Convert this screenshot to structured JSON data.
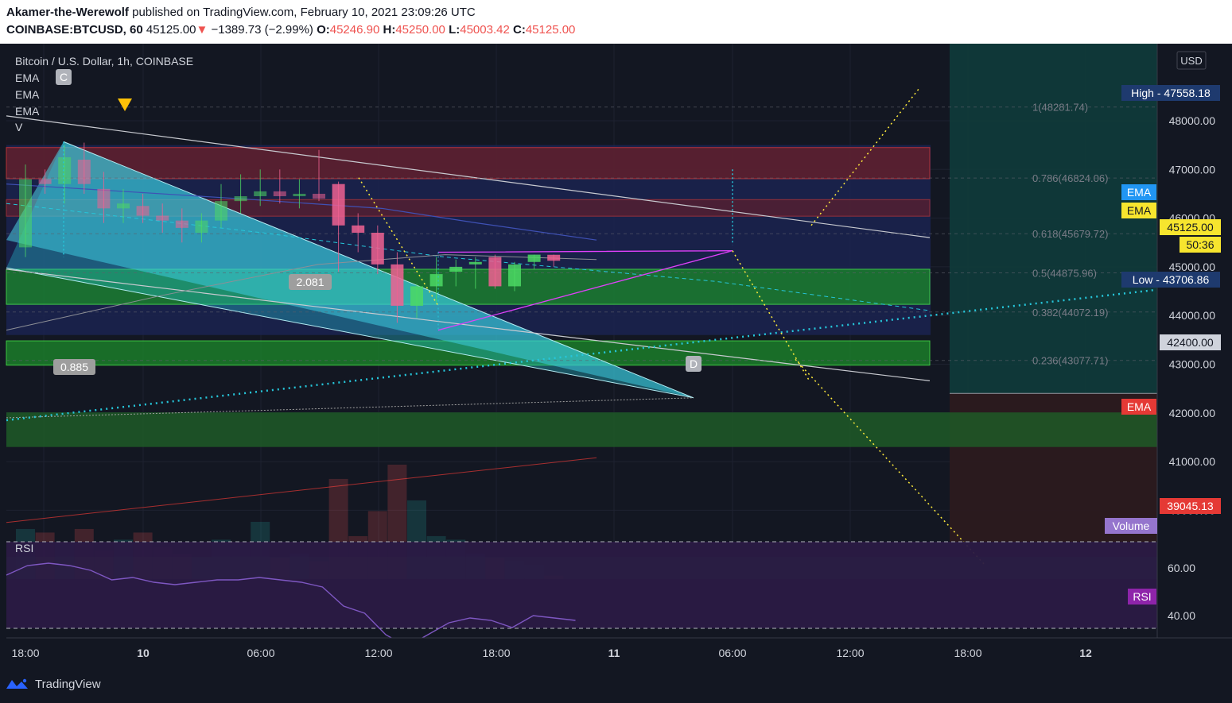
{
  "header": {
    "author": "Akamer-the-Werewolf",
    "published_text": "published on TradingView.com, February 10, 2021 23:09:26 UTC",
    "symbol": "COINBASE:BTCUSD, 60",
    "last": "45125.00",
    "change_arrow": "▼",
    "change": "−1389.73 (−2.99%)",
    "open_label": "O:",
    "open": "45246.90",
    "high_label": "H:",
    "high": "45250.00",
    "low_label": "L:",
    "low": "45003.42",
    "close_label": "C:",
    "close": "45125.00"
  },
  "legend": {
    "title": "Bitcoin / U.S. Dollar, 1h, COINBASE",
    "ema1": "EMA",
    "ema2": "EMA",
    "ema3": "EMA",
    "vol": "V"
  },
  "footer": {
    "brand": "TradingView"
  },
  "colors": {
    "background": "#131722",
    "up": "#26a69a",
    "down": "#ef5350",
    "bull_candle": "#4cd964",
    "bear_candle": "#f06292",
    "fib_text": "#787b86",
    "rsi_band": "#2a1a45",
    "yellow": "#ffeb3b"
  },
  "chart_data": {
    "type": "candlestick",
    "price_axis": {
      "currency": "USD",
      "ylim": [
        38700,
        48600
      ],
      "ticks": [
        "48000.00",
        "47000.00",
        "46000.00",
        "45000.00",
        "44000.00",
        "43000.00",
        "42000.00",
        "41000.00",
        "40000.00"
      ]
    },
    "time_axis": {
      "labels": [
        "18:00",
        "10",
        "06:00",
        "12:00",
        "18:00",
        "11",
        "06:00",
        "12:00",
        "18:00",
        "12"
      ]
    },
    "price_labels": [
      {
        "label": "High",
        "value": "47558.18",
        "color": "#1e3a6e"
      },
      {
        "label": "EMA",
        "value": "",
        "color": "#2196f3"
      },
      {
        "label": "EMA",
        "value": "",
        "color": "#f7e52e"
      },
      {
        "label": "",
        "value": "45125.00",
        "color": "#f7e52e"
      },
      {
        "label": "",
        "value": "50:36",
        "color": "#f7e52e"
      },
      {
        "label": "Low",
        "value": "43706.86",
        "color": "#1e3a6e"
      },
      {
        "label": "",
        "value": "42400.00",
        "color": "#cfd3dc"
      },
      {
        "label": "EMA",
        "value": "",
        "color": "#e53935"
      },
      {
        "label": "",
        "value": "39045.13",
        "color": "#e53935"
      },
      {
        "label": "Volume",
        "value": "",
        "color": "#9575cd"
      }
    ],
    "fib_levels": [
      {
        "ratio": "1",
        "text": "1(48281.74)",
        "price": 48281.74
      },
      {
        "ratio": "0.786",
        "text": "0.786(46824.06)",
        "price": 46824.06
      },
      {
        "ratio": "0.618",
        "text": "0.618(45679.72)",
        "price": 45679.72
      },
      {
        "ratio": "0.5",
        "text": "0.5(44875.96)",
        "price": 44875.96
      },
      {
        "ratio": "0.382",
        "text": "0.382(44072.19)",
        "price": 44072.19
      },
      {
        "ratio": "0.236",
        "text": "0.236(43077.71)",
        "price": 43077.71
      }
    ],
    "pattern_labels": [
      "C",
      "D",
      "2.081",
      "0.885"
    ],
    "candles": [
      {
        "o": 45400,
        "h": 47100,
        "l": 45200,
        "c": 46800
      },
      {
        "o": 46800,
        "h": 47000,
        "l": 46500,
        "c": 46700
      },
      {
        "o": 46700,
        "h": 47500,
        "l": 46300,
        "c": 47250
      },
      {
        "o": 47200,
        "h": 47550,
        "l": 46500,
        "c": 46700
      },
      {
        "o": 46600,
        "h": 46950,
        "l": 45900,
        "c": 46200
      },
      {
        "o": 46200,
        "h": 46600,
        "l": 45900,
        "c": 46300
      },
      {
        "o": 46250,
        "h": 46500,
        "l": 45900,
        "c": 46050
      },
      {
        "o": 46050,
        "h": 46300,
        "l": 45700,
        "c": 45950
      },
      {
        "o": 45950,
        "h": 46200,
        "l": 45500,
        "c": 45800
      },
      {
        "o": 45700,
        "h": 46100,
        "l": 45500,
        "c": 45950
      },
      {
        "o": 45950,
        "h": 46700,
        "l": 45800,
        "c": 46350
      },
      {
        "o": 46350,
        "h": 46900,
        "l": 46100,
        "c": 46450
      },
      {
        "o": 46450,
        "h": 47000,
        "l": 46250,
        "c": 46550
      },
      {
        "o": 46550,
        "h": 47000,
        "l": 46300,
        "c": 46450
      },
      {
        "o": 46450,
        "h": 46800,
        "l": 46200,
        "c": 46500
      },
      {
        "o": 46500,
        "h": 47400,
        "l": 46350,
        "c": 46400
      },
      {
        "o": 46700,
        "h": 46750,
        "l": 44900,
        "c": 45850
      },
      {
        "o": 45850,
        "h": 46100,
        "l": 45300,
        "c": 45700
      },
      {
        "o": 45700,
        "h": 45850,
        "l": 44850,
        "c": 45050
      },
      {
        "o": 45050,
        "h": 45300,
        "l": 43850,
        "c": 44200
      },
      {
        "o": 44200,
        "h": 44650,
        "l": 43950,
        "c": 44600
      },
      {
        "o": 44600,
        "h": 45200,
        "l": 44250,
        "c": 44850
      },
      {
        "o": 44900,
        "h": 45150,
        "l": 44600,
        "c": 45000
      },
      {
        "o": 45050,
        "h": 45200,
        "l": 44550,
        "c": 45100
      },
      {
        "o": 45200,
        "h": 45250,
        "l": 44550,
        "c": 44600
      },
      {
        "o": 44600,
        "h": 45100,
        "l": 44500,
        "c": 45050
      },
      {
        "o": 45100,
        "h": 45250,
        "l": 44950,
        "c": 45250
      },
      {
        "o": 45246.9,
        "h": 45250,
        "l": 45003.42,
        "c": 45125
      }
    ],
    "volume": [
      14,
      13,
      10,
      14,
      8,
      11,
      13,
      9,
      7,
      6,
      11,
      10,
      16,
      6,
      7,
      5,
      28,
      12,
      19,
      32,
      22,
      12,
      11,
      7,
      6,
      5,
      4,
      1
    ],
    "rsi": {
      "ylim": [
        25,
        80
      ],
      "ticks": [
        "60.00",
        "40.00"
      ],
      "label": "RSI",
      "values": [
        57,
        61,
        62,
        61,
        59,
        55,
        56,
        54,
        53,
        54,
        55,
        55,
        56,
        55,
        54,
        52,
        44,
        41,
        32,
        27,
        32,
        37,
        39,
        38,
        35,
        40,
        39,
        38
      ]
    }
  }
}
